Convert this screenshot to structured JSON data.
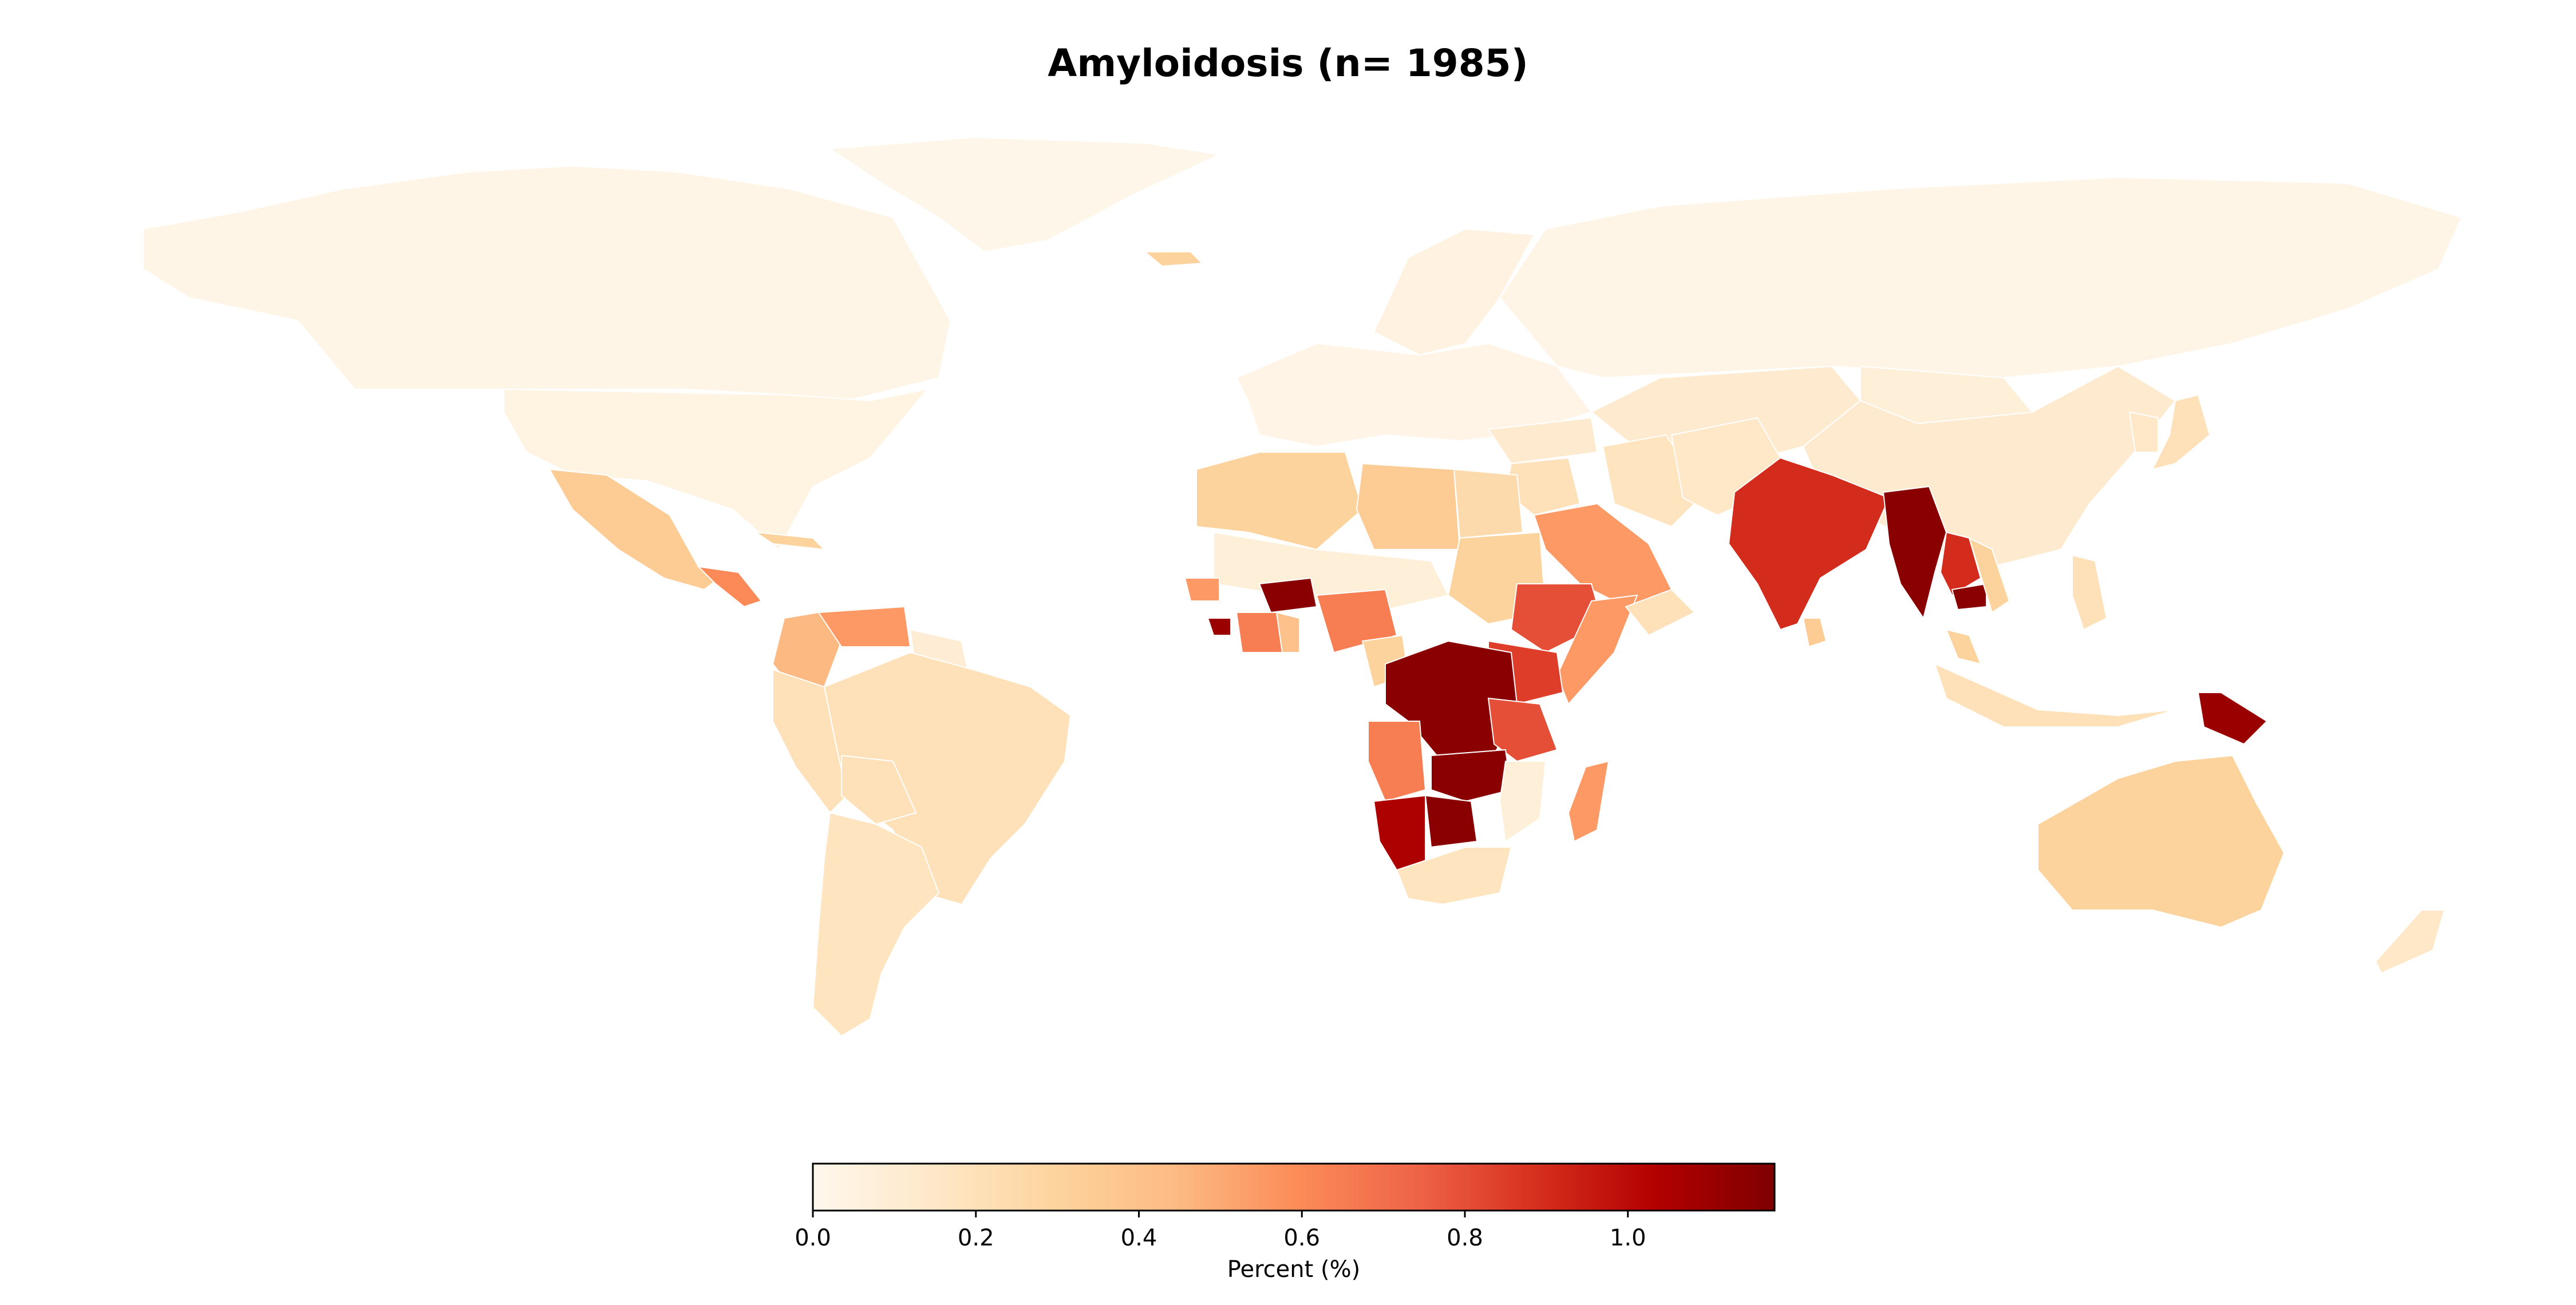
{
  "title": "Amyloidosis (n= 1985)",
  "colorbar": {
    "label": "Percent (%)",
    "min": 0.0,
    "max": 1.18,
    "colormap": "OrRd",
    "ticks": [
      {
        "value": 0.0,
        "label": "0.0"
      },
      {
        "value": 0.2,
        "label": "0.2"
      },
      {
        "value": 0.4,
        "label": "0.4"
      },
      {
        "value": 0.6,
        "label": "0.6"
      },
      {
        "value": 0.8,
        "label": "0.8"
      },
      {
        "value": 1.0,
        "label": "1.0"
      }
    ],
    "stops": [
      "#fff7ec",
      "#fee8c8",
      "#fdd49e",
      "#fdbb84",
      "#fc8d59",
      "#ef6548",
      "#d7301f",
      "#b30000",
      "#7f0000"
    ]
  },
  "regions": [
    {
      "name": "Canada",
      "value": 0.02
    },
    {
      "name": "USA",
      "value": 0.04
    },
    {
      "name": "Greenland",
      "value": 0.01
    },
    {
      "name": "Iceland",
      "value": 0.3
    },
    {
      "name": "Mexico",
      "value": 0.35
    },
    {
      "name": "Central America",
      "value": 0.6
    },
    {
      "name": "Cuba",
      "value": 0.3
    },
    {
      "name": "Colombia",
      "value": 0.45
    },
    {
      "name": "Venezuela",
      "value": 0.55
    },
    {
      "name": "Guyana region",
      "value": 0.1
    },
    {
      "name": "Brazil",
      "value": 0.2
    },
    {
      "name": "Peru",
      "value": 0.2
    },
    {
      "name": "Bolivia",
      "value": 0.2
    },
    {
      "name": "Chile/Argentina",
      "value": 0.18
    },
    {
      "name": "Europe",
      "value": 0.03
    },
    {
      "name": "Scandinavia",
      "value": 0.05
    },
    {
      "name": "Russia",
      "value": 0.02
    },
    {
      "name": "Kazakhstan/Central Asia",
      "value": 0.12
    },
    {
      "name": "China",
      "value": 0.12
    },
    {
      "name": "Mongolia",
      "value": 0.08
    },
    {
      "name": "Japan",
      "value": 0.2
    },
    {
      "name": "Korea",
      "value": 0.15
    },
    {
      "name": "Turkey",
      "value": 0.12
    },
    {
      "name": "Middle East",
      "value": 0.2
    },
    {
      "name": "Saudi Arabia",
      "value": 0.55
    },
    {
      "name": "Iran",
      "value": 0.18
    },
    {
      "name": "Afghanistan/Pakistan",
      "value": 0.15
    },
    {
      "name": "India",
      "value": 0.9
    },
    {
      "name": "Myanmar",
      "value": 1.15
    },
    {
      "name": "Thailand/Laos",
      "value": 0.9
    },
    {
      "name": "Cambodia",
      "value": 1.15
    },
    {
      "name": "Vietnam",
      "value": 0.3
    },
    {
      "name": "Malaysia",
      "value": 0.3
    },
    {
      "name": "Indonesia",
      "value": 0.2
    },
    {
      "name": "Philippines",
      "value": 0.2
    },
    {
      "name": "Papua New Guinea",
      "value": 1.1
    },
    {
      "name": "Australia",
      "value": 0.3
    },
    {
      "name": "New Zealand",
      "value": 0.15
    },
    {
      "name": "Morocco/Algeria",
      "value": 0.3
    },
    {
      "name": "Libya",
      "value": 0.35
    },
    {
      "name": "Egypt",
      "value": 0.25
    },
    {
      "name": "Sahel",
      "value": 0.08
    },
    {
      "name": "Sudan",
      "value": 0.3
    },
    {
      "name": "Senegal",
      "value": 0.55
    },
    {
      "name": "Sierra Leone",
      "value": 1.1
    },
    {
      "name": "Ivory Coast",
      "value": 0.65
    },
    {
      "name": "Ghana",
      "value": 0.4
    },
    {
      "name": "Burkina Faso",
      "value": 1.15
    },
    {
      "name": "Nigeria",
      "value": 0.65
    },
    {
      "name": "Cameroon",
      "value": 0.3
    },
    {
      "name": "Ethiopia",
      "value": 0.8
    },
    {
      "name": "Somalia",
      "value": 0.55
    },
    {
      "name": "Kenya/Uganda",
      "value": 0.85
    },
    {
      "name": "DR Congo",
      "value": 1.15
    },
    {
      "name": "Tanzania",
      "value": 0.8
    },
    {
      "name": "Angola",
      "value": 0.65
    },
    {
      "name": "Zambia/Zimbabwe",
      "value": 1.15
    },
    {
      "name": "Mozambique",
      "value": 0.08
    },
    {
      "name": "Namibia",
      "value": 1.05
    },
    {
      "name": "Botswana",
      "value": 1.15
    },
    {
      "name": "South Africa",
      "value": 0.18
    },
    {
      "name": "Madagascar",
      "value": 0.55
    },
    {
      "name": "Sri Lanka",
      "value": 0.35
    },
    {
      "name": "Arabian Peninsula south",
      "value": 0.2
    }
  ]
}
